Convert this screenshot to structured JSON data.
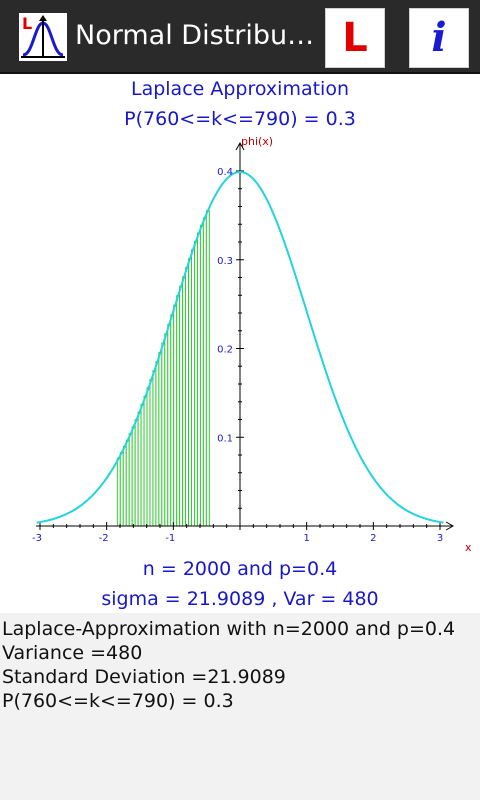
{
  "app": {
    "title": "Normal Distribu…",
    "button_l": "L",
    "button_info": "i",
    "icon_letter": "L"
  },
  "header": {
    "line1": "Laplace Approximation",
    "line2": "P(760<=k<=790) = 0.3"
  },
  "chart_data": {
    "type": "area",
    "function": "standard normal density phi(x)",
    "ylabel": "phi(x)",
    "xlabel": "x",
    "xlim": [
      -3.1,
      3.3
    ],
    "ylim": [
      0,
      0.4
    ],
    "x_ticks": [
      -3,
      -2,
      -1,
      1,
      2,
      3
    ],
    "y_ticks": [
      0.1,
      0.2,
      0.3,
      0.4
    ],
    "shaded_range": [
      -1.84,
      -0.46
    ],
    "bar_count": 31,
    "grid": false,
    "curve_color": "#22d3e0",
    "bar_color": "#33cc33",
    "axis_label_color": "#c00000",
    "tick_label_color": "#1a1ad0"
  },
  "footer": {
    "line1": "n = 2000 and p=0.4",
    "line2": "sigma = 21.9089 , Var = 480"
  },
  "results": {
    "line1": "Laplace-Approximation with n=2000 and p=0.4",
    "line2": "Variance =480",
    "line3": "Standard Deviation =21.9089",
    "line4": "P(760<=k<=790) = 0.3"
  }
}
